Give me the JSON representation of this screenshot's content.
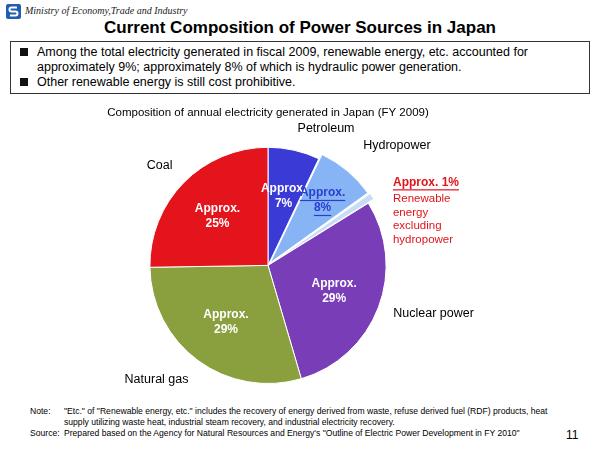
{
  "header": {
    "organization": "Ministry of Economy,Trade and Industry"
  },
  "title": "Current Composition of Power Sources in Japan",
  "bullets": [
    "Among the total electricity generated in fiscal 2009, renewable energy, etc. accounted for approximately 9%; approximately 8% of which is hydraulic power generation.",
    "Other renewable energy is still cost prohibitive."
  ],
  "chart_data": {
    "type": "pie",
    "title": "Composition of annual electricity generated in Japan (FY 2009)",
    "categories": [
      "Petroleum",
      "Hydropower",
      "Renewable energy excluding hydropower",
      "Nuclear power",
      "Natural gas",
      "Coal"
    ],
    "values": [
      7,
      8,
      1,
      29,
      29,
      25
    ],
    "value_labels": [
      "Approx. 7%",
      "Approx. 8%",
      "Approx. 1%",
      "Approx. 29%",
      "Approx. 29%",
      "Approx. 25%"
    ],
    "colors": [
      "#3a3ad6",
      "#86b4f4",
      "#c9dcf5",
      "#7a3db8",
      "#8a9f3e",
      "#e3141b"
    ],
    "data_labels": true
  },
  "note": {
    "label": "Note:",
    "text": "\"Etc.\" of \"Renewable energy, etc.\" includes the recovery of energy derived from waste, refuse derived fuel (RDF) products, heat supply utilizing waste heat, industrial steam recovery, and industrial electricity recovery."
  },
  "source": {
    "label": "Source:",
    "text": "Prepared based on the Agency for Natural Resources and Energy's \"Outline of Electric Power Development in FY 2010\""
  },
  "page_number": 11
}
